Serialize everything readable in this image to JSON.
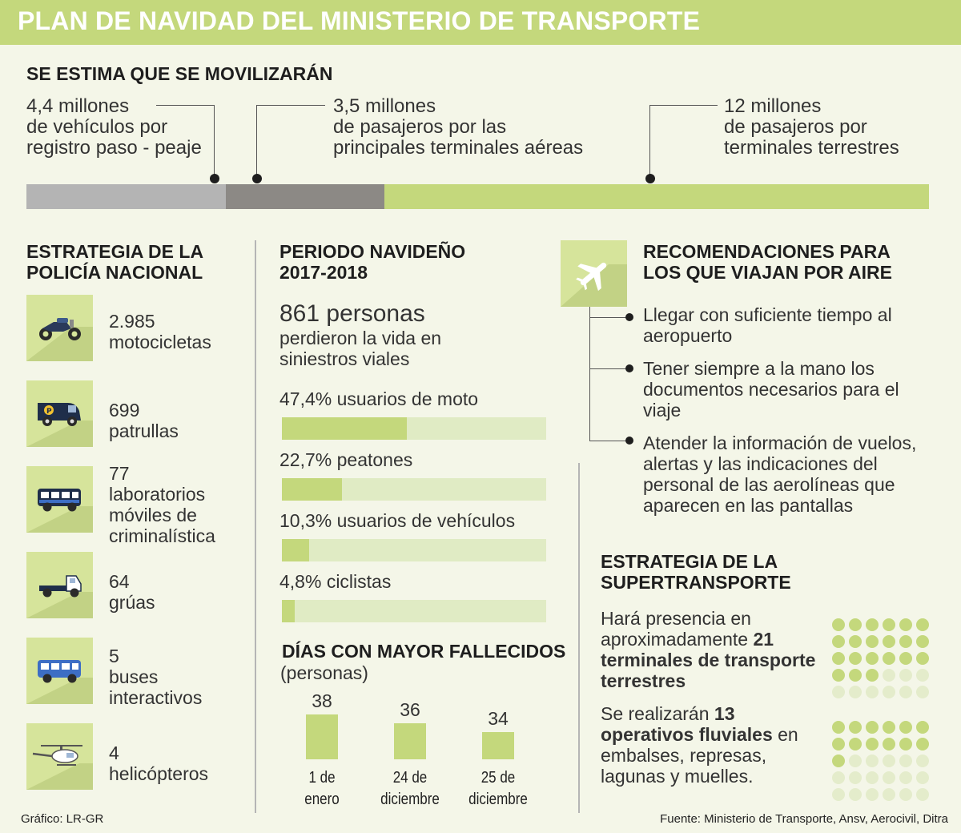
{
  "title": "PLAN DE NAVIDAD DEL MINISTERIO DE TRANSPORTE",
  "mobilize": {
    "heading": "SE ESTIMA QUE SE MOVILIZARÁN",
    "items": [
      {
        "amount": "4,4 millones",
        "desc1": "de vehículos por",
        "desc2": "registro paso - peaje",
        "value_millions": 4.4,
        "color": "#b4b4b4"
      },
      {
        "amount": "3,5 millones",
        "desc1": "de pasajeros por las",
        "desc2": "principales terminales aéreas",
        "value_millions": 3.5,
        "color": "#8c8985"
      },
      {
        "amount": "12 millones",
        "desc1": "de pasajeros por",
        "desc2": "terminales terrestres",
        "value_millions": 12,
        "color": "#c4d87c"
      }
    ]
  },
  "police": {
    "heading1": "ESTRATEGIA DE LA",
    "heading2": "POLICÍA NACIONAL",
    "items": [
      {
        "icon": "motorcycle-icon",
        "lines": [
          "2.985",
          "motocicletas"
        ]
      },
      {
        "icon": "patrol-van-icon",
        "lines": [
          "699",
          "patrullas"
        ]
      },
      {
        "icon": "lab-bus-icon",
        "lines": [
          "77",
          "laboratorios",
          "móviles de",
          "criminalística"
        ]
      },
      {
        "icon": "tow-truck-icon",
        "lines": [
          "64",
          "grúas"
        ]
      },
      {
        "icon": "bus-icon",
        "lines": [
          "5",
          "buses",
          "interactivos"
        ]
      },
      {
        "icon": "helicopter-icon",
        "lines": [
          "4",
          "helicópteros"
        ]
      }
    ]
  },
  "period": {
    "heading1": "PERIODO NAVIDEÑO",
    "heading2": "2017-2018",
    "deaths": "861 personas",
    "deaths_desc1": "perdieron la vida en",
    "deaths_desc2": "siniestros viales"
  },
  "chart_data": [
    {
      "type": "bar",
      "orientation": "horizontal",
      "categories": [
        "47,4% usuarios de moto",
        "22,7% peatones",
        "10,3% usuarios de vehículos",
        "4,8% ciclistas"
      ],
      "values": [
        47.4,
        22.7,
        10.3,
        4.8
      ],
      "xlim": [
        0,
        100
      ],
      "title": "",
      "colors": {
        "fill": "#c4d87c",
        "track": "#e0ebc4"
      }
    },
    {
      "type": "bar",
      "title": "DÍAS CON MAYOR FALLECIDOS",
      "subtitle": "(personas)",
      "categories": [
        [
          "1 de",
          "enero"
        ],
        [
          "24 de",
          "diciembre"
        ],
        [
          "25 de",
          "diciembre"
        ]
      ],
      "values": [
        38,
        36,
        34
      ],
      "value_labels": [
        "38",
        "36",
        "34"
      ],
      "color": "#c4d87c"
    }
  ],
  "recommendations": {
    "heading1": "RECOMENDACIONES PARA",
    "heading2": "LOS QUE VIAJAN POR AIRE",
    "icon": "airplane-icon",
    "items": [
      [
        "Llegar con suficiente tiempo al",
        "aeropuerto"
      ],
      [
        "Tener siempre a la mano los",
        "documentos necesarios para el",
        "viaje"
      ],
      [
        "Atender la información de vuelos,",
        "alertas y las indicaciones del",
        "personal de las aerolíneas que",
        "aparecen en las pantallas"
      ]
    ]
  },
  "supertransporte": {
    "heading1": "ESTRATEGIA DE LA",
    "heading2": "SUPERTRANSPORTE",
    "p1": {
      "l1": "Hará presencia en",
      "l2a": "aproximadamente ",
      "l2b": "21",
      "l3": "terminales de transporte",
      "l4": "terrestres"
    },
    "p2": {
      "l1a": "Se realizarán ",
      "l1b": "13",
      "l2a": "operativos fluviales",
      "l2b": " en",
      "l3": "embalses, represas,",
      "l4": "lagunas y muelles."
    },
    "grid1_filled": 21,
    "grid2_filled": 13,
    "grid_total": 30,
    "colors": {
      "filled": "#c4d87c",
      "empty": "#e4eccb"
    }
  },
  "footer": {
    "credit": "Gráfico: LR-GR",
    "source": "Fuente: Ministerio de Transporte, Ansv, Aerocivil, Ditra"
  }
}
